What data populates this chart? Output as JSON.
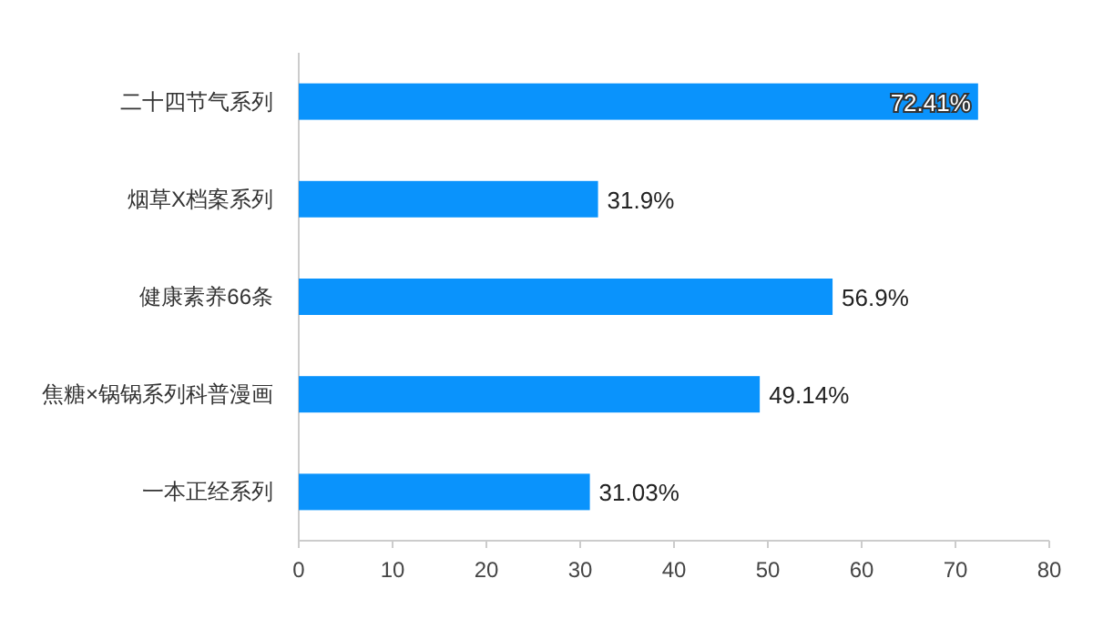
{
  "chart_data": {
    "type": "bar",
    "orientation": "horizontal",
    "categories": [
      "二十四节气系列",
      "烟草X档案系列",
      "健康素养66条",
      "焦糖×锅锅系列科普漫画",
      "一本正经系列"
    ],
    "values": [
      72.41,
      31.9,
      56.9,
      49.14,
      31.03
    ],
    "value_labels": [
      "72.41%",
      "31.9%",
      "56.9%",
      "49.14%",
      "31.03%"
    ],
    "color": "#0a93fc",
    "xlim": [
      0,
      80
    ],
    "xticks": [
      0,
      10,
      20,
      30,
      40,
      50,
      60,
      70,
      80
    ],
    "grid": false
  }
}
